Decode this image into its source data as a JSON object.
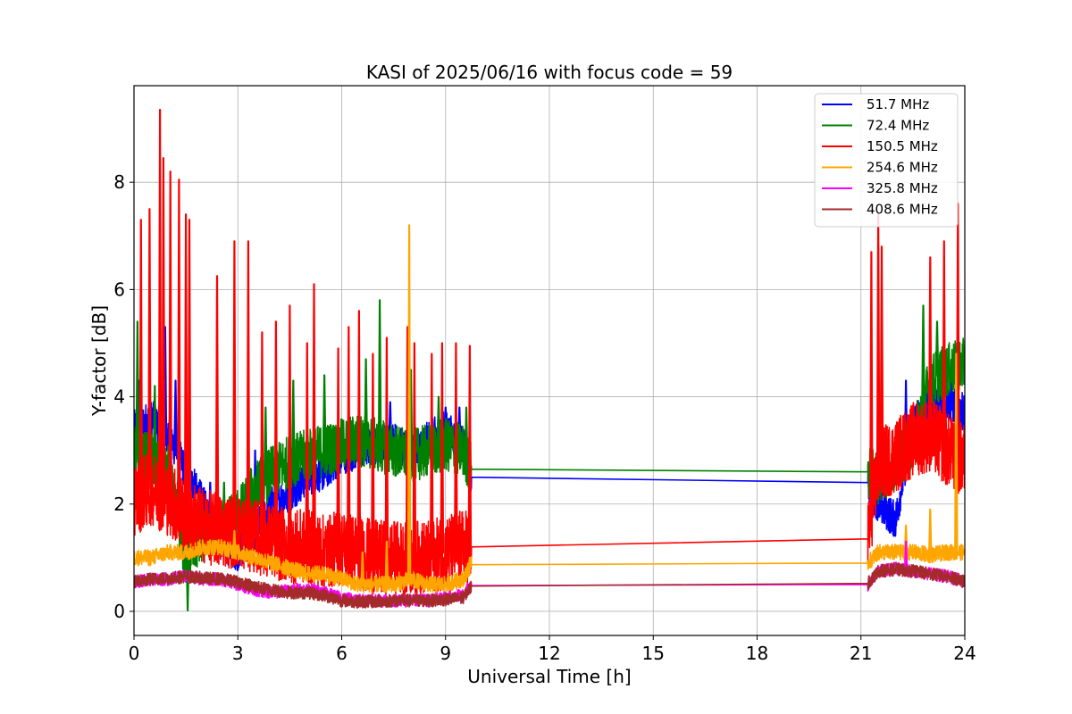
{
  "chart_data": {
    "type": "line",
    "title": "KASI of 2025/06/16 with focus code = 59",
    "xlabel": "Universal Time [h]",
    "ylabel": "Y-factor [dB]",
    "xlim": [
      0,
      24
    ],
    "ylim": [
      -0.45,
      9.8
    ],
    "xticks": [
      0,
      3,
      6,
      9,
      12,
      15,
      18,
      21,
      24
    ],
    "yticks": [
      0,
      2,
      4,
      6,
      8
    ],
    "grid": true,
    "legend_position": "top-right",
    "gap": [
      9.75,
      21.2
    ],
    "series": [
      {
        "name": " 51.7 MHz",
        "color": "#0000ff",
        "x": [
          0,
          0.5,
          1.0,
          1.5,
          2.0,
          2.5,
          3.0,
          3.5,
          4.0,
          4.5,
          5.0,
          5.5,
          6.0,
          6.5,
          7.0,
          7.5,
          8.0,
          8.5,
          9.0,
          9.5,
          9.75,
          21.2,
          21.5,
          22.0,
          22.5,
          23.0,
          23.5,
          24.0
        ],
        "values": [
          3.4,
          3.6,
          3.3,
          2.6,
          2.0,
          1.3,
          1.1,
          1.5,
          2.0,
          2.2,
          2.5,
          2.6,
          2.9,
          3.0,
          3.1,
          3.2,
          2.9,
          3.2,
          3.4,
          3.1,
          2.5,
          2.4,
          2.0,
          1.7,
          3.5,
          3.8,
          3.9,
          3.7
        ],
        "spikes": [
          [
            0.15,
            4.3
          ],
          [
            0.9,
            5.3
          ],
          [
            1.2,
            4.3
          ],
          [
            2.2,
            2.4
          ],
          [
            3.5,
            3.0
          ],
          [
            4.5,
            3.5
          ],
          [
            5.2,
            3.7
          ],
          [
            6.2,
            3.8
          ],
          [
            7.4,
            3.9
          ],
          [
            8.2,
            3.4
          ],
          [
            9.0,
            3.8
          ],
          [
            9.4,
            3.8
          ],
          [
            22.3,
            4.3
          ],
          [
            23.6,
            4.5
          ]
        ],
        "noise": 0.35
      },
      {
        "name": " 72.4 MHz",
        "color": "#008000",
        "x": [
          0,
          0.5,
          1.0,
          1.5,
          2.0,
          2.5,
          3.0,
          3.5,
          4.0,
          4.5,
          5.0,
          5.5,
          6.0,
          6.5,
          7.0,
          7.5,
          8.0,
          8.5,
          9.0,
          9.5,
          9.75,
          21.2,
          21.5,
          22.0,
          22.5,
          23.0,
          23.5,
          24.0
        ],
        "values": [
          3.0,
          2.8,
          2.6,
          1.0,
          1.4,
          1.5,
          1.8,
          2.3,
          2.6,
          2.8,
          2.9,
          3.0,
          3.1,
          3.2,
          3.1,
          3.0,
          2.9,
          3.0,
          3.1,
          3.0,
          2.65,
          2.6,
          2.5,
          2.7,
          3.2,
          4.3,
          4.5,
          4.6
        ],
        "spikes": [
          [
            0.1,
            5.4
          ],
          [
            0.6,
            4.2
          ],
          [
            1.55,
            0.02
          ],
          [
            2.6,
            2.4
          ],
          [
            3.8,
            3.8
          ],
          [
            4.6,
            4.3
          ],
          [
            5.5,
            4.4
          ],
          [
            6.7,
            4.7
          ],
          [
            7.1,
            5.8
          ],
          [
            8.0,
            4.5
          ],
          [
            8.8,
            4.0
          ],
          [
            9.6,
            3.8
          ],
          [
            22.8,
            5.7
          ],
          [
            23.2,
            5.4
          ]
        ],
        "noise": 0.5
      },
      {
        "name": "150.5 MHz",
        "color": "#ff0000",
        "x": [
          0,
          0.5,
          1.0,
          1.5,
          2.0,
          2.5,
          3.0,
          3.5,
          4.0,
          4.5,
          5.0,
          5.5,
          6.0,
          6.5,
          7.0,
          7.5,
          8.0,
          8.5,
          9.0,
          9.5,
          9.75,
          21.2,
          21.5,
          22.0,
          22.5,
          23.0,
          23.5,
          24.0
        ],
        "values": [
          2.1,
          2.3,
          2.1,
          1.8,
          1.6,
          1.5,
          1.5,
          1.4,
          1.3,
          1.2,
          1.2,
          1.1,
          1.2,
          1.1,
          1.0,
          1.0,
          1.0,
          1.0,
          1.1,
          1.2,
          1.2,
          1.35,
          2.7,
          2.9,
          3.2,
          3.3,
          3.0,
          2.8
        ],
        "spikes": [
          [
            0.2,
            7.3
          ],
          [
            0.45,
            7.5
          ],
          [
            0.75,
            9.35
          ],
          [
            0.85,
            8.45
          ],
          [
            1.05,
            8.2
          ],
          [
            1.3,
            8.05
          ],
          [
            1.5,
            7.4
          ],
          [
            1.6,
            7.3
          ],
          [
            2.4,
            6.25
          ],
          [
            2.9,
            6.9
          ],
          [
            3.3,
            6.9
          ],
          [
            3.7,
            5.2
          ],
          [
            4.1,
            5.4
          ],
          [
            4.5,
            5.7
          ],
          [
            5.0,
            5.0
          ],
          [
            5.2,
            6.1
          ],
          [
            5.9,
            4.9
          ],
          [
            6.2,
            5.3
          ],
          [
            6.5,
            5.6
          ],
          [
            6.9,
            4.8
          ],
          [
            7.3,
            5.1
          ],
          [
            7.9,
            5.3
          ],
          [
            8.1,
            5.0
          ],
          [
            8.6,
            4.8
          ],
          [
            8.9,
            5.0
          ],
          [
            9.3,
            5.0
          ],
          [
            9.7,
            4.95
          ],
          [
            21.3,
            6.7
          ],
          [
            21.5,
            7.4
          ],
          [
            21.6,
            6.8
          ],
          [
            23.0,
            6.6
          ],
          [
            23.4,
            6.9
          ],
          [
            23.8,
            7.6
          ]
        ],
        "noise": 0.7
      },
      {
        "name": "254.6 MHz",
        "color": "#ffa500",
        "x": [
          0,
          0.5,
          1.0,
          1.5,
          2.0,
          2.5,
          3.0,
          3.5,
          4.0,
          4.5,
          5.0,
          5.5,
          6.0,
          6.5,
          7.0,
          7.5,
          8.0,
          8.5,
          9.0,
          9.5,
          9.75,
          21.2,
          21.5,
          22.0,
          22.5,
          23.0,
          23.5,
          24.0
        ],
        "values": [
          1.0,
          1.0,
          1.1,
          1.1,
          1.2,
          1.2,
          1.1,
          1.0,
          0.9,
          0.8,
          0.7,
          0.7,
          0.6,
          0.5,
          0.5,
          0.5,
          0.6,
          0.5,
          0.5,
          0.6,
          0.87,
          0.9,
          1.1,
          1.1,
          1.1,
          1.05,
          1.1,
          1.1
        ],
        "spikes": [
          [
            2.9,
            1.5
          ],
          [
            7.95,
            7.2
          ],
          [
            6.6,
            1.1
          ],
          [
            7.3,
            1.3
          ],
          [
            9.7,
            1.0
          ],
          [
            22.3,
            1.6
          ],
          [
            23.0,
            1.9
          ],
          [
            23.75,
            4.8
          ]
        ],
        "noise": 0.15
      },
      {
        "name": "325.8 MHz",
        "color": "#ff00ff",
        "x": [
          0,
          0.5,
          1.0,
          1.5,
          2.0,
          2.5,
          3.0,
          3.5,
          4.0,
          4.5,
          5.0,
          5.5,
          6.0,
          6.5,
          7.0,
          7.5,
          8.0,
          8.5,
          9.0,
          9.5,
          9.75,
          21.2,
          21.5,
          22.0,
          22.5,
          23.0,
          23.5,
          24.0
        ],
        "values": [
          0.55,
          0.6,
          0.6,
          0.65,
          0.6,
          0.6,
          0.5,
          0.4,
          0.35,
          0.4,
          0.4,
          0.35,
          0.25,
          0.2,
          0.2,
          0.2,
          0.2,
          0.2,
          0.25,
          0.3,
          0.48,
          0.5,
          0.75,
          0.8,
          0.75,
          0.7,
          0.65,
          0.55
        ],
        "spikes": [
          [
            22.3,
            1.3
          ]
        ],
        "noise": 0.12
      },
      {
        "name": "408.6 MHz",
        "color": "#a52a2a",
        "x": [
          0,
          0.5,
          1.0,
          1.5,
          2.0,
          2.5,
          3.0,
          3.5,
          4.0,
          4.5,
          5.0,
          5.5,
          6.0,
          6.5,
          7.0,
          7.5,
          8.0,
          8.5,
          9.0,
          9.5,
          9.75,
          21.2,
          21.5,
          22.0,
          22.5,
          23.0,
          23.5,
          24.0
        ],
        "values": [
          0.55,
          0.6,
          0.62,
          0.65,
          0.62,
          0.6,
          0.55,
          0.45,
          0.4,
          0.35,
          0.35,
          0.3,
          0.2,
          0.18,
          0.18,
          0.2,
          0.2,
          0.2,
          0.22,
          0.25,
          0.47,
          0.52,
          0.75,
          0.78,
          0.75,
          0.7,
          0.65,
          0.55
        ],
        "spikes": [],
        "noise": 0.12
      }
    ]
  }
}
